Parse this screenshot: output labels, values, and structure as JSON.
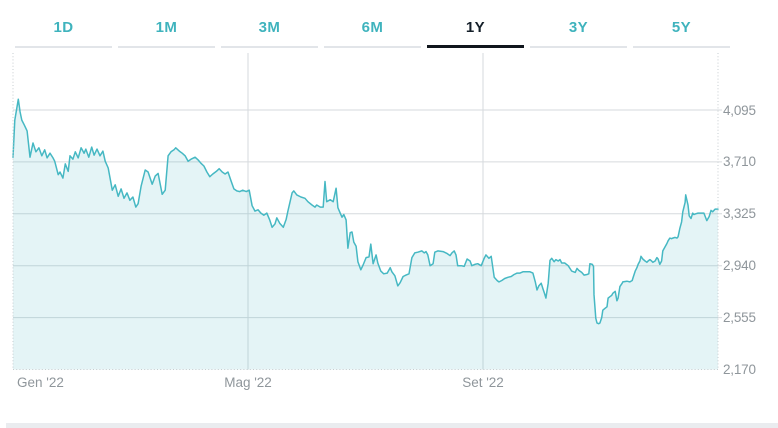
{
  "tabs": {
    "items": [
      {
        "label": "1D",
        "active": false
      },
      {
        "label": "1M",
        "active": false
      },
      {
        "label": "3M",
        "active": false
      },
      {
        "label": "6M",
        "active": false
      },
      {
        "label": "1Y",
        "active": true
      },
      {
        "label": "3Y",
        "active": false
      },
      {
        "label": "5Y",
        "active": false
      }
    ]
  },
  "colors": {
    "tab_teal": "#3fb3bd",
    "tab_active_text": "#141f29",
    "tab_active_underline": "#10161c",
    "tab_underline": "#e2e5e9",
    "line": "#46b8c3",
    "area_fill": "rgba(62,178,192,0.14)",
    "gridline": "#d6dadd",
    "dotted_border": "#c6ccd0",
    "axis_label": "#8f969b",
    "bottom_strip": "#eaecef"
  },
  "chart_data": {
    "type": "area",
    "title": "",
    "xlabel": "",
    "ylabel": "",
    "x_unit": "months since Jan 2022 (0 = Gen '22)",
    "xlim": [
      0,
      12
    ],
    "ylim": [
      2170,
      4518
    ],
    "x_tick_labels": [
      "Gen '22",
      "Mag '22",
      "Set '22"
    ],
    "x_tick_positions": [
      0,
      4,
      8
    ],
    "y_ticks": [
      2170,
      2555,
      2940,
      3325,
      3710,
      4095
    ],
    "y_tick_labels": [
      "2,170",
      "2,555",
      "2,940",
      "3,325",
      "3,710",
      "4,095"
    ],
    "grid": "horizontal lines at y ticks; vertical lines at Mag and Set; dotted left/right/bottom plot border",
    "legend": "none",
    "series": [
      {
        "name": "price",
        "points": [
          [
            0.0,
            3745
          ],
          [
            0.03,
            4020
          ],
          [
            0.09,
            4175
          ],
          [
            0.12,
            4080
          ],
          [
            0.15,
            4020
          ],
          [
            0.19,
            3985
          ],
          [
            0.24,
            3940
          ],
          [
            0.29,
            3745
          ],
          [
            0.34,
            3850
          ],
          [
            0.39,
            3785
          ],
          [
            0.44,
            3815
          ],
          [
            0.49,
            3755
          ],
          [
            0.54,
            3800
          ],
          [
            0.58,
            3740
          ],
          [
            0.63,
            3775
          ],
          [
            0.68,
            3740
          ],
          [
            0.71,
            3715
          ],
          [
            0.77,
            3615
          ],
          [
            0.8,
            3635
          ],
          [
            0.85,
            3590
          ],
          [
            0.89,
            3695
          ],
          [
            0.94,
            3640
          ],
          [
            0.97,
            3755
          ],
          [
            1.02,
            3730
          ],
          [
            1.06,
            3785
          ],
          [
            1.11,
            3740
          ],
          [
            1.16,
            3815
          ],
          [
            1.21,
            3775
          ],
          [
            1.24,
            3805
          ],
          [
            1.29,
            3745
          ],
          [
            1.34,
            3820
          ],
          [
            1.38,
            3760
          ],
          [
            1.43,
            3805
          ],
          [
            1.48,
            3755
          ],
          [
            1.53,
            3790
          ],
          [
            1.57,
            3715
          ],
          [
            1.62,
            3665
          ],
          [
            1.69,
            3500
          ],
          [
            1.74,
            3540
          ],
          [
            1.79,
            3455
          ],
          [
            1.84,
            3510
          ],
          [
            1.89,
            3440
          ],
          [
            1.94,
            3480
          ],
          [
            1.99,
            3425
          ],
          [
            2.04,
            3450
          ],
          [
            2.09,
            3375
          ],
          [
            2.13,
            3400
          ],
          [
            2.18,
            3530
          ],
          [
            2.25,
            3650
          ],
          [
            2.3,
            3635
          ],
          [
            2.37,
            3545
          ],
          [
            2.42,
            3605
          ],
          [
            2.47,
            3625
          ],
          [
            2.54,
            3470
          ],
          [
            2.59,
            3500
          ],
          [
            2.64,
            3755
          ],
          [
            2.69,
            3785
          ],
          [
            2.74,
            3800
          ],
          [
            2.77,
            3815
          ],
          [
            2.83,
            3790
          ],
          [
            2.88,
            3775
          ],
          [
            2.93,
            3755
          ],
          [
            2.98,
            3715
          ],
          [
            3.03,
            3730
          ],
          [
            3.1,
            3745
          ],
          [
            3.15,
            3725
          ],
          [
            3.2,
            3700
          ],
          [
            3.25,
            3680
          ],
          [
            3.3,
            3635
          ],
          [
            3.35,
            3600
          ],
          [
            3.4,
            3620
          ],
          [
            3.46,
            3640
          ],
          [
            3.51,
            3660
          ],
          [
            3.56,
            3635
          ],
          [
            3.61,
            3620
          ],
          [
            3.66,
            3635
          ],
          [
            3.71,
            3570
          ],
          [
            3.76,
            3510
          ],
          [
            3.81,
            3495
          ],
          [
            3.86,
            3490
          ],
          [
            3.91,
            3500
          ],
          [
            3.97,
            3490
          ],
          [
            4.02,
            3500
          ],
          [
            4.07,
            3385
          ],
          [
            4.12,
            3345
          ],
          [
            4.17,
            3355
          ],
          [
            4.22,
            3330
          ],
          [
            4.27,
            3315
          ],
          [
            4.32,
            3330
          ],
          [
            4.37,
            3280
          ],
          [
            4.41,
            3225
          ],
          [
            4.46,
            3250
          ],
          [
            4.49,
            3295
          ],
          [
            4.54,
            3255
          ],
          [
            4.6,
            3225
          ],
          [
            4.65,
            3285
          ],
          [
            4.68,
            3345
          ],
          [
            4.75,
            3480
          ],
          [
            4.78,
            3495
          ],
          [
            4.83,
            3465
          ],
          [
            4.9,
            3450
          ],
          [
            4.97,
            3440
          ],
          [
            5.02,
            3415
          ],
          [
            5.09,
            3390
          ],
          [
            5.14,
            3375
          ],
          [
            5.17,
            3390
          ],
          [
            5.23,
            3375
          ],
          [
            5.28,
            3375
          ],
          [
            5.31,
            3565
          ],
          [
            5.34,
            3415
          ],
          [
            5.4,
            3430
          ],
          [
            5.45,
            3415
          ],
          [
            5.5,
            3515
          ],
          [
            5.53,
            3370
          ],
          [
            5.57,
            3330
          ],
          [
            5.6,
            3300
          ],
          [
            5.63,
            3320
          ],
          [
            5.67,
            3280
          ],
          [
            5.7,
            3070
          ],
          [
            5.74,
            3185
          ],
          [
            5.77,
            3190
          ],
          [
            5.8,
            3115
          ],
          [
            5.84,
            3085
          ],
          [
            5.87,
            2970
          ],
          [
            5.92,
            2910
          ],
          [
            5.96,
            2945
          ],
          [
            6.01,
            3000
          ],
          [
            6.06,
            3005
          ],
          [
            6.09,
            3100
          ],
          [
            6.13,
            2955
          ],
          [
            6.18,
            3020
          ],
          [
            6.21,
            2960
          ],
          [
            6.26,
            2900
          ],
          [
            6.31,
            2880
          ],
          [
            6.37,
            2885
          ],
          [
            6.42,
            2925
          ],
          [
            6.45,
            2895
          ],
          [
            6.5,
            2865
          ],
          [
            6.55,
            2790
          ],
          [
            6.59,
            2815
          ],
          [
            6.64,
            2860
          ],
          [
            6.69,
            2870
          ],
          [
            6.74,
            2880
          ],
          [
            6.79,
            3000
          ],
          [
            6.84,
            3035
          ],
          [
            6.89,
            3040
          ],
          [
            6.96,
            3050
          ],
          [
            7.0,
            3035
          ],
          [
            7.03,
            3045
          ],
          [
            7.06,
            3020
          ],
          [
            7.1,
            2940
          ],
          [
            7.15,
            2955
          ],
          [
            7.18,
            3040
          ],
          [
            7.23,
            3050
          ],
          [
            7.32,
            3045
          ],
          [
            7.39,
            3030
          ],
          [
            7.44,
            3015
          ],
          [
            7.47,
            3035
          ],
          [
            7.51,
            3050
          ],
          [
            7.54,
            3020
          ],
          [
            7.57,
            2940
          ],
          [
            7.63,
            2940
          ],
          [
            7.68,
            2935
          ],
          [
            7.73,
            2990
          ],
          [
            7.78,
            2975
          ],
          [
            7.81,
            2940
          ],
          [
            7.86,
            2950
          ],
          [
            7.91,
            2955
          ],
          [
            7.97,
            2940
          ],
          [
            8.02,
            2995
          ],
          [
            8.05,
            3020
          ],
          [
            8.1,
            2995
          ],
          [
            8.14,
            3010
          ],
          [
            8.19,
            2855
          ],
          [
            8.24,
            2830
          ],
          [
            8.27,
            2820
          ],
          [
            8.32,
            2830
          ],
          [
            8.37,
            2845
          ],
          [
            8.43,
            2855
          ],
          [
            8.48,
            2860
          ],
          [
            8.53,
            2875
          ],
          [
            8.58,
            2885
          ],
          [
            8.63,
            2885
          ],
          [
            8.68,
            2895
          ],
          [
            8.75,
            2895
          ],
          [
            8.8,
            2895
          ],
          [
            8.85,
            2885
          ],
          [
            8.89,
            2820
          ],
          [
            8.92,
            2760
          ],
          [
            8.95,
            2790
          ],
          [
            8.99,
            2810
          ],
          [
            9.02,
            2770
          ],
          [
            9.05,
            2730
          ],
          [
            9.07,
            2700
          ],
          [
            9.11,
            2810
          ],
          [
            9.14,
            2980
          ],
          [
            9.17,
            2995
          ],
          [
            9.21,
            2970
          ],
          [
            9.24,
            2985
          ],
          [
            9.28,
            2975
          ],
          [
            9.31,
            2985
          ],
          [
            9.34,
            2960
          ],
          [
            9.39,
            2960
          ],
          [
            9.45,
            2940
          ],
          [
            9.51,
            2900
          ],
          [
            9.57,
            2890
          ],
          [
            9.6,
            2920
          ],
          [
            9.63,
            2905
          ],
          [
            9.68,
            2890
          ],
          [
            9.72,
            2870
          ],
          [
            9.77,
            2875
          ],
          [
            9.8,
            2880
          ],
          [
            9.82,
            2955
          ],
          [
            9.86,
            2950
          ],
          [
            9.88,
            2935
          ],
          [
            9.89,
            2725
          ],
          [
            9.92,
            2550
          ],
          [
            9.94,
            2515
          ],
          [
            9.97,
            2510
          ],
          [
            9.99,
            2515
          ],
          [
            10.02,
            2555
          ],
          [
            10.04,
            2610
          ],
          [
            10.08,
            2625
          ],
          [
            10.11,
            2635
          ],
          [
            10.13,
            2700
          ],
          [
            10.16,
            2710
          ],
          [
            10.19,
            2720
          ],
          [
            10.21,
            2735
          ],
          [
            10.25,
            2750
          ],
          [
            10.28,
            2680
          ],
          [
            10.3,
            2700
          ],
          [
            10.33,
            2785
          ],
          [
            10.37,
            2810
          ],
          [
            10.38,
            2820
          ],
          [
            10.45,
            2825
          ],
          [
            10.5,
            2820
          ],
          [
            10.54,
            2830
          ],
          [
            10.55,
            2845
          ],
          [
            10.59,
            2900
          ],
          [
            10.62,
            2925
          ],
          [
            10.64,
            2950
          ],
          [
            10.67,
            2975
          ],
          [
            10.69,
            3010
          ],
          [
            10.72,
            2990
          ],
          [
            10.76,
            2975
          ],
          [
            10.79,
            2965
          ],
          [
            10.81,
            2975
          ],
          [
            10.84,
            2985
          ],
          [
            10.87,
            2975
          ],
          [
            10.89,
            2965
          ],
          [
            10.93,
            2975
          ],
          [
            10.96,
            3000
          ],
          [
            10.98,
            2990
          ],
          [
            11.01,
            2950
          ],
          [
            11.04,
            2975
          ],
          [
            11.06,
            3050
          ],
          [
            11.1,
            3080
          ],
          [
            11.13,
            3105
          ],
          [
            11.15,
            3125
          ],
          [
            11.18,
            3145
          ],
          [
            11.21,
            3140
          ],
          [
            11.23,
            3145
          ],
          [
            11.27,
            3150
          ],
          [
            11.3,
            3145
          ],
          [
            11.32,
            3155
          ],
          [
            11.35,
            3215
          ],
          [
            11.38,
            3265
          ],
          [
            11.4,
            3340
          ],
          [
            11.44,
            3410
          ],
          [
            11.45,
            3465
          ],
          [
            11.49,
            3390
          ],
          [
            11.51,
            3310
          ],
          [
            11.54,
            3290
          ],
          [
            11.57,
            3330
          ],
          [
            11.59,
            3320
          ],
          [
            11.62,
            3325
          ],
          [
            11.66,
            3330
          ],
          [
            11.71,
            3330
          ],
          [
            11.76,
            3330
          ],
          [
            11.81,
            3275
          ],
          [
            11.85,
            3305
          ],
          [
            11.88,
            3350
          ],
          [
            11.91,
            3340
          ],
          [
            11.95,
            3360
          ],
          [
            12.0,
            3360
          ]
        ]
      }
    ]
  }
}
